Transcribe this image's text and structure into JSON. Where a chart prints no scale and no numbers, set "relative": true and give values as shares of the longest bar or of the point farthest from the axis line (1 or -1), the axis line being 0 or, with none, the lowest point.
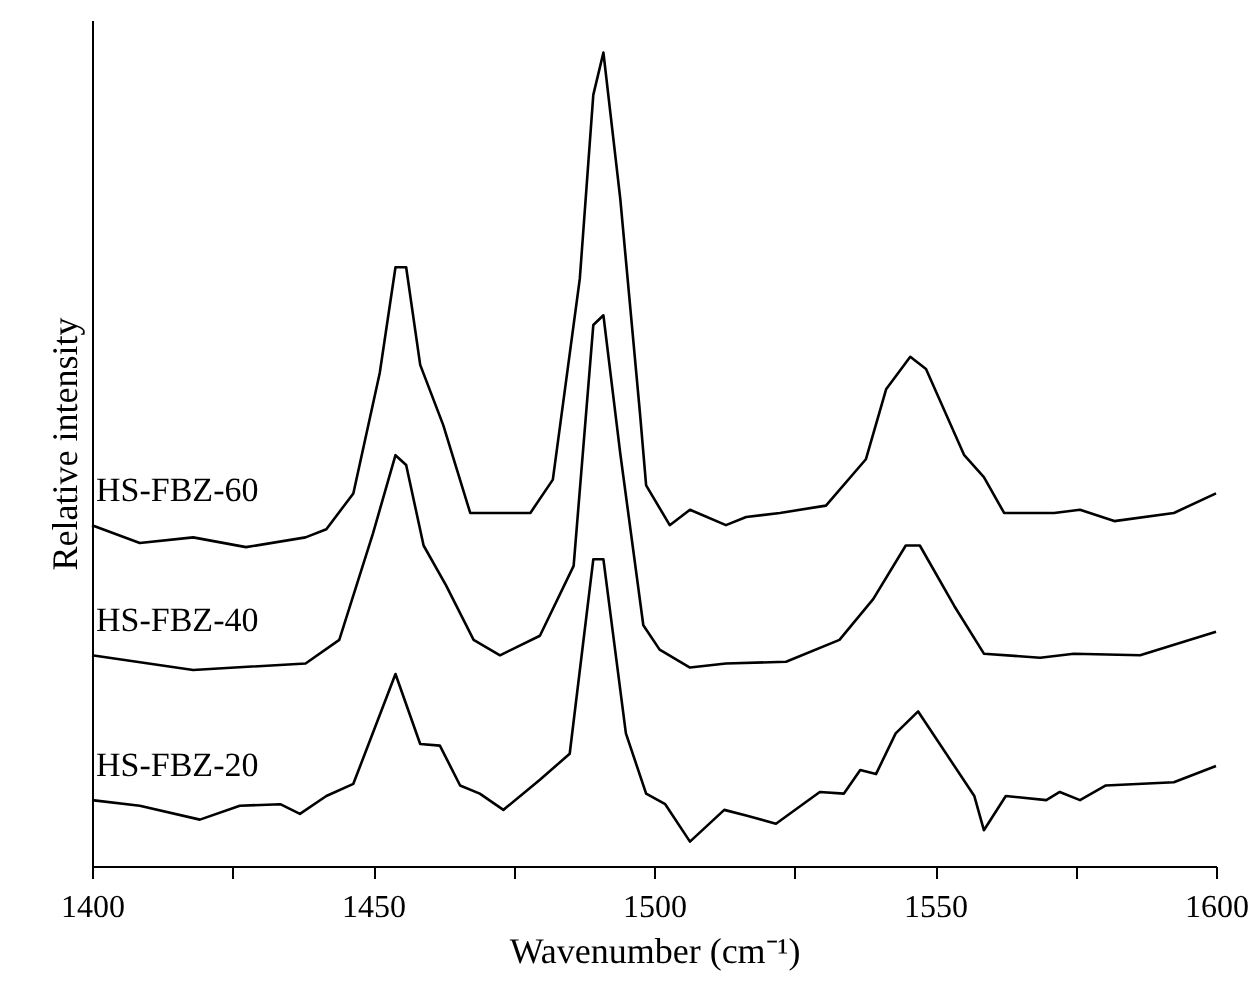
{
  "chart_data": {
    "type": "line",
    "relative": true,
    "xlabel": "Wavenumber (cm⁻¹)",
    "ylabel": "Relative intensity",
    "xlim": [
      1400,
      1600
    ],
    "xticks": [
      1400,
      {
        "value": 1425,
        "label": null
      },
      1450,
      {
        "value": 1475,
        "label": null
      },
      1500,
      {
        "value": 1525,
        "label": null
      },
      1550,
      {
        "value": 1575,
        "label": null
      },
      1600
    ],
    "grid": false,
    "line_style": "solid",
    "marker": "none",
    "series": [
      {
        "name": "HS-FBZ-60",
        "color": "#000000",
        "x": [
          1400,
          1408.5,
          1418,
          1427.4,
          1438,
          1441.7,
          1446.5,
          1451.2,
          1454,
          1455.9,
          1458.4,
          1462.5,
          1467.3,
          1471.4,
          1478,
          1482,
          1486.8,
          1489.2,
          1491,
          1494,
          1497.5,
          1498.6,
          1502.8,
          1506.4,
          1512.8,
          1516.4,
          1522.4,
          1530.6,
          1537.7,
          1541.3,
          1545.6,
          1548.4,
          1555.2,
          1558.7,
          1562.3,
          1571.2,
          1575.8,
          1581.9,
          1592.5,
          1600
        ],
        "values": [
          0.419,
          0.397,
          0.404,
          0.392,
          0.404,
          0.414,
          0.458,
          0.606,
          0.736,
          0.736,
          0.616,
          0.542,
          0.434,
          0.434,
          0.434,
          0.475,
          0.722,
          0.948,
          1.0,
          0.82,
          0.557,
          0.468,
          0.419,
          0.438,
          0.419,
          0.429,
          0.434,
          0.443,
          0.5,
          0.586,
          0.626,
          0.611,
          0.505,
          0.478,
          0.434,
          0.434,
          0.438,
          0.424,
          0.434,
          0.458
        ]
      },
      {
        "name": "HS-FBZ-40",
        "color": "#000000",
        "x": [
          1400,
          1418,
          1438,
          1444,
          1450,
          1454,
          1455.9,
          1459,
          1463,
          1467.9,
          1472.6,
          1479.7,
          1485.7,
          1489.2,
          1491,
          1494,
          1498.1,
          1501,
          1506.4,
          1512.8,
          1523.5,
          1533,
          1539,
          1544.8,
          1547.3,
          1553.4,
          1558.7,
          1568.7,
          1574.7,
          1586.5,
          1600
        ],
        "values": [
          0.259,
          0.241,
          0.249,
          0.278,
          0.409,
          0.505,
          0.493,
          0.394,
          0.345,
          0.278,
          0.259,
          0.283,
          0.369,
          0.665,
          0.677,
          0.507,
          0.296,
          0.266,
          0.244,
          0.249,
          0.251,
          0.278,
          0.328,
          0.394,
          0.394,
          0.32,
          0.261,
          0.256,
          0.261,
          0.259,
          0.288
        ]
      },
      {
        "name": "HS-FBZ-20",
        "color": "#000000",
        "x": [
          1400,
          1408.5,
          1419.2,
          1426.3,
          1433.5,
          1437,
          1441.7,
          1446.5,
          1454,
          1458.4,
          1461.9,
          1465.5,
          1469,
          1473.2,
          1479.7,
          1485,
          1489.2,
          1491,
          1495,
          1498.6,
          1502,
          1506.4,
          1512.5,
          1516.4,
          1521.7,
          1529.5,
          1533.8,
          1536.7,
          1539.5,
          1543,
          1547,
          1557,
          1558.7,
          1562.6,
          1569.8,
          1572.2,
          1575.8,
          1580.4,
          1592.5,
          1600
        ],
        "values": [
          0.081,
          0.074,
          0.057,
          0.074,
          0.076,
          0.064,
          0.086,
          0.101,
          0.236,
          0.15,
          0.148,
          0.099,
          0.089,
          0.069,
          0.106,
          0.138,
          0.377,
          0.377,
          0.163,
          0.089,
          0.076,
          0.03,
          0.069,
          0.062,
          0.052,
          0.091,
          0.089,
          0.118,
          0.113,
          0.163,
          0.19,
          0.086,
          0.044,
          0.086,
          0.081,
          0.091,
          0.081,
          0.099,
          0.103,
          0.123
        ]
      }
    ]
  }
}
